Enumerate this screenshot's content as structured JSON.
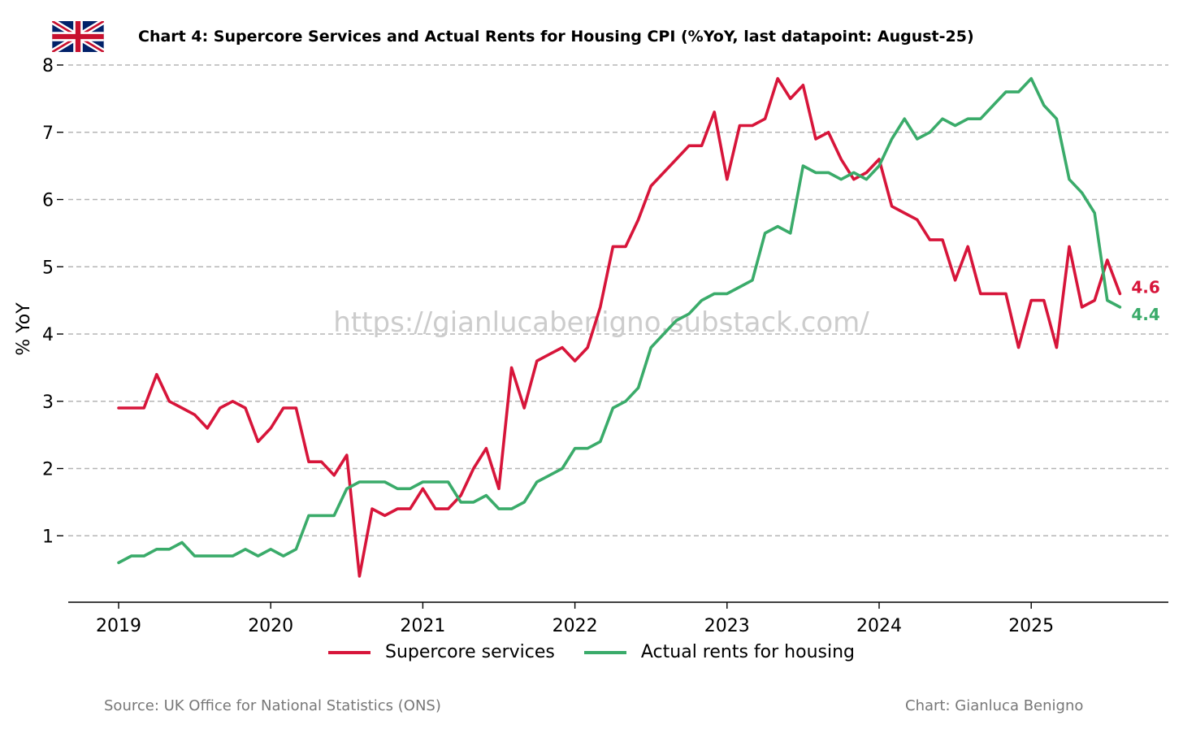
{
  "title": "Chart 4: Supercore Services and Actual Rents for Housing CPI (%YoY, last datapoint: August-25)",
  "watermark": "https://gianlucabenigno.substack.com/",
  "source": "Source: UK Office for National Statistics (ONS)",
  "credit": "Chart: Gianluca Benigno",
  "flag_icon": "uk-flag-icon",
  "chart_data": {
    "type": "line",
    "ylabel": "% YoY",
    "xlabel": "",
    "x_start": "2019-01",
    "x_end": "2025-08",
    "x_ticks": [
      "2019",
      "2020",
      "2021",
      "2022",
      "2023",
      "2024",
      "2025"
    ],
    "y_ticks": [
      "1",
      "2",
      "3",
      "4",
      "5",
      "6",
      "7",
      "8"
    ],
    "ylim": [
      0,
      8
    ],
    "grid": "horizontal dashed",
    "legend_position": "bottom-center",
    "series": [
      {
        "name": "Supercore services",
        "color": "#d7153a",
        "end_label": "4.6",
        "values": [
          2.9,
          2.9,
          2.9,
          3.4,
          3.0,
          2.9,
          2.8,
          2.6,
          2.9,
          3.0,
          2.9,
          2.4,
          2.6,
          2.9,
          2.9,
          2.1,
          2.1,
          1.9,
          2.2,
          0.4,
          1.4,
          1.3,
          1.4,
          1.4,
          1.7,
          1.4,
          1.4,
          1.6,
          2.0,
          2.3,
          1.7,
          3.5,
          2.9,
          3.6,
          3.7,
          3.8,
          3.6,
          3.8,
          4.4,
          5.3,
          5.3,
          5.7,
          6.2,
          6.4,
          6.6,
          6.8,
          6.8,
          7.3,
          6.3,
          7.1,
          7.1,
          7.2,
          7.8,
          7.5,
          7.7,
          6.9,
          7.0,
          6.6,
          6.3,
          6.4,
          6.6,
          5.9,
          5.8,
          5.7,
          5.4,
          5.4,
          4.8,
          5.3,
          4.6,
          4.6,
          4.6,
          3.8,
          4.5,
          4.5,
          3.8,
          5.3,
          4.4,
          4.5,
          5.1,
          4.6
        ]
      },
      {
        "name": "Actual rents for housing",
        "color": "#3aab6a",
        "end_label": "4.4",
        "values": [
          0.6,
          0.7,
          0.7,
          0.8,
          0.8,
          0.9,
          0.7,
          0.7,
          0.7,
          0.7,
          0.8,
          0.7,
          0.8,
          0.7,
          0.8,
          1.3,
          1.3,
          1.3,
          1.7,
          1.8,
          1.8,
          1.8,
          1.7,
          1.7,
          1.8,
          1.8,
          1.8,
          1.5,
          1.5,
          1.6,
          1.4,
          1.4,
          1.5,
          1.8,
          1.9,
          2.0,
          2.3,
          2.3,
          2.4,
          2.9,
          3.0,
          3.2,
          3.8,
          4.0,
          4.2,
          4.3,
          4.5,
          4.6,
          4.6,
          4.7,
          4.8,
          5.5,
          5.6,
          5.5,
          6.5,
          6.4,
          6.4,
          6.3,
          6.4,
          6.3,
          6.5,
          6.9,
          7.2,
          6.9,
          7.0,
          7.2,
          7.1,
          7.2,
          7.2,
          7.4,
          7.6,
          7.6,
          7.8,
          7.4,
          7.2,
          6.3,
          6.1,
          5.8,
          4.5,
          4.4
        ]
      }
    ]
  }
}
